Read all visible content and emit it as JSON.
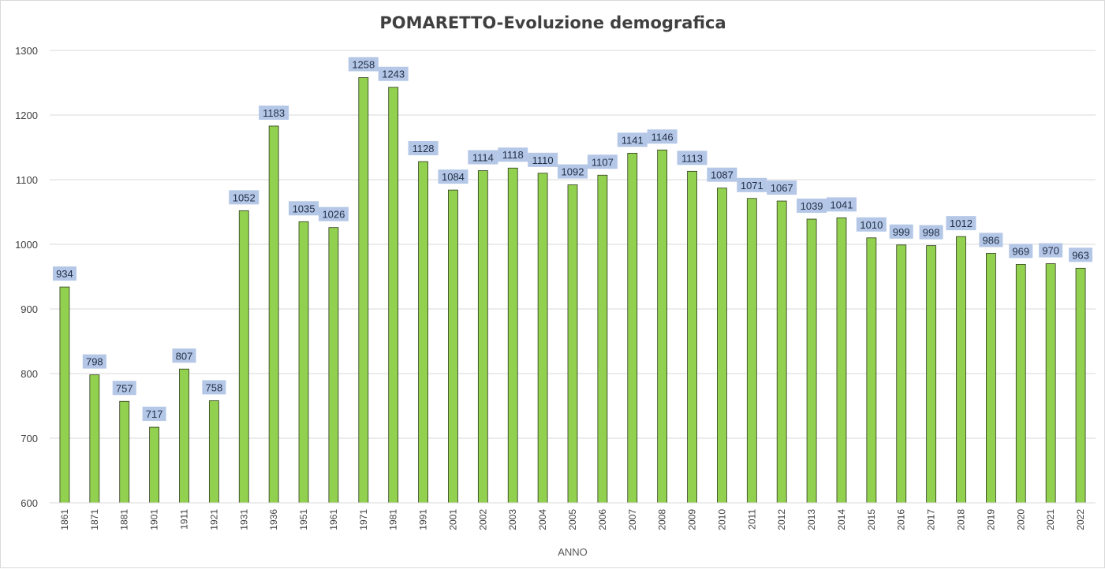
{
  "chart_data": {
    "type": "bar",
    "title": "POMARETTO-Evoluzione demografica",
    "xlabel": "ANNO",
    "ylabel": "",
    "ylim": [
      600,
      1300
    ],
    "yticks": [
      600,
      700,
      800,
      900,
      1000,
      1100,
      1200,
      1300
    ],
    "grid": true,
    "legend": "none",
    "bar_color": "#92d050",
    "label_bg_color": "#b4c7e7",
    "categories": [
      "1861",
      "1871",
      "1881",
      "1901",
      "1911",
      "1921",
      "1931",
      "1936",
      "1951",
      "1961",
      "1971",
      "1981",
      "1991",
      "2001",
      "2002",
      "2003",
      "2004",
      "2005",
      "2006",
      "2007",
      "2008",
      "2009",
      "2010",
      "2011",
      "2012",
      "2013",
      "2014",
      "2015",
      "2016",
      "2017",
      "2018",
      "2019",
      "2020",
      "2021",
      "2022"
    ],
    "values": [
      934,
      798,
      757,
      717,
      807,
      758,
      1052,
      1183,
      1035,
      1026,
      1258,
      1243,
      1128,
      1084,
      1114,
      1118,
      1110,
      1092,
      1107,
      1141,
      1146,
      1113,
      1087,
      1071,
      1067,
      1039,
      1041,
      1010,
      999,
      998,
      1012,
      986,
      969,
      970,
      963
    ]
  }
}
